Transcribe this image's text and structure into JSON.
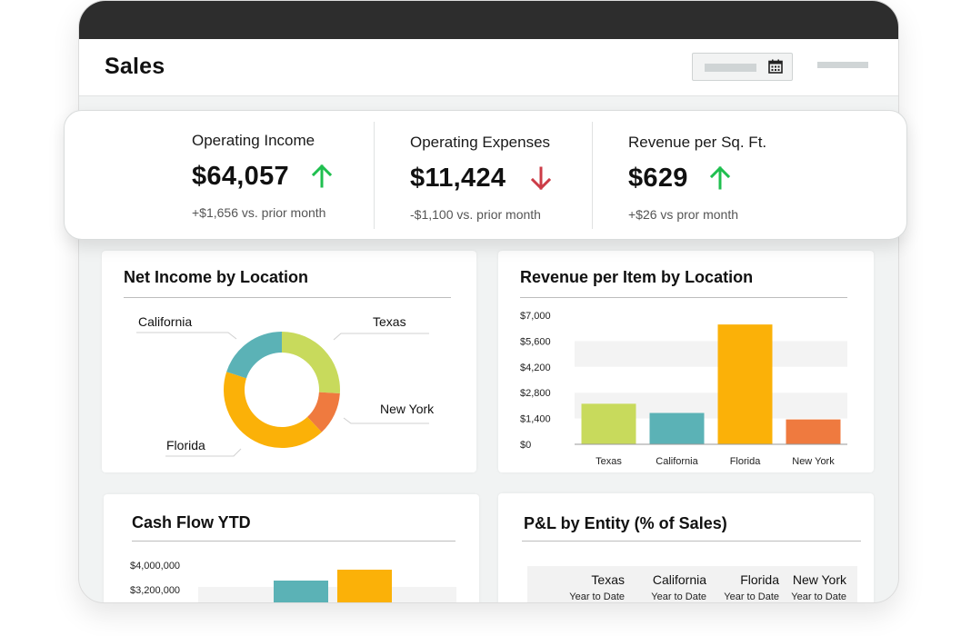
{
  "header": {
    "title": "Sales"
  },
  "kpis": [
    {
      "label": "Operating Income",
      "value": "$64,057",
      "direction": "up",
      "delta": "+$1,656 vs. prior month"
    },
    {
      "label": "Operating Expenses",
      "value": "$11,424",
      "direction": "down",
      "delta": "-$1,100 vs. prior month"
    },
    {
      "label": "Revenue per Sq. Ft.",
      "value": "$629",
      "direction": "up",
      "delta": "+$26 vs pror month"
    }
  ],
  "colors": {
    "up": "#1fbf4f",
    "down": "#cc3c47",
    "texas": "#c8da5c",
    "california": "#5bb2b6",
    "florida": "#fbb108",
    "new_york": "#ef7a3f"
  },
  "panels": {
    "net_income": {
      "title": "Net Income by Location"
    },
    "revenue_item": {
      "title": "Revenue per Item by Location"
    },
    "cash_flow": {
      "title": "Cash Flow YTD"
    },
    "pl": {
      "title": "P&L by Entity (% of Sales)",
      "columns": [
        {
          "name": "Texas",
          "sub": "Year to Date"
        },
        {
          "name": "California",
          "sub": "Year to Date"
        },
        {
          "name": "Florida",
          "sub": "Year to Date"
        },
        {
          "name": "New York",
          "sub": "Year to Date"
        }
      ]
    }
  },
  "chart_data": [
    {
      "type": "pie",
      "title": "Net Income by Location",
      "categories": [
        "Texas",
        "New York",
        "Florida",
        "California"
      ],
      "values": [
        26,
        12,
        42,
        20
      ],
      "colors": [
        "#c8da5c",
        "#ef7a3f",
        "#fbb108",
        "#5bb2b6"
      ]
    },
    {
      "type": "bar",
      "title": "Revenue per Item by Location",
      "categories": [
        "Texas",
        "California",
        "Florida",
        "New York"
      ],
      "values": [
        2200,
        1700,
        6500,
        1350
      ],
      "colors": [
        "#c8da5c",
        "#5bb2b6",
        "#fbb108",
        "#ef7a3f"
      ],
      "yticks": [
        "$0",
        "$1,400",
        "$2,800",
        "$4,200",
        "$5,600",
        "$7,000"
      ],
      "ylim": [
        0,
        7000
      ]
    },
    {
      "type": "bar",
      "title": "Cash Flow YTD",
      "yticks": [
        "$4,000,000",
        "$3,200,000"
      ]
    }
  ]
}
